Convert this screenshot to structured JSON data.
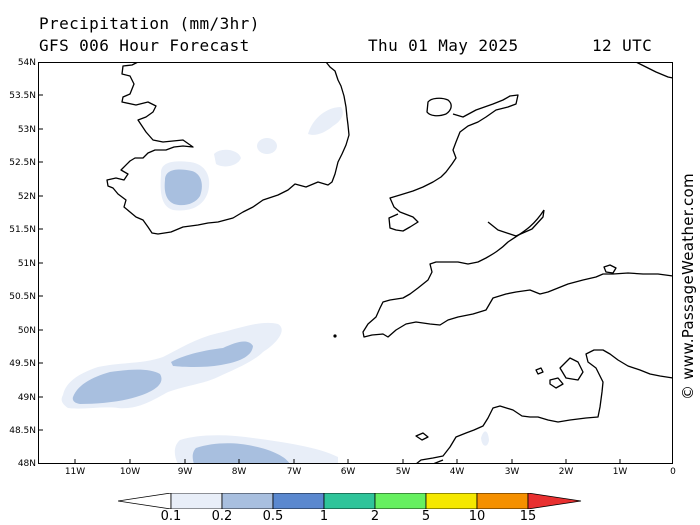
{
  "header": {
    "title": "Precipitation (mm/3hr)",
    "subtitle": "GFS 006 Hour Forecast",
    "date": "Thu 01 May 2025",
    "time": "12 UTC"
  },
  "map": {
    "lat_labels": [
      "54N",
      "53.5N",
      "53N",
      "52.5N",
      "52N",
      "51.5N",
      "51N",
      "50.5N",
      "50N",
      "49.5N",
      "49N",
      "48.5N",
      "48N"
    ],
    "lon_labels": [
      "11W",
      "10W",
      "9W",
      "8W",
      "7W",
      "6W",
      "5W",
      "4W",
      "3W",
      "2W",
      "1W",
      "0"
    ],
    "lat_range": [
      48,
      54
    ],
    "lon_range": [
      -12,
      0
    ],
    "precip_areas": [
      {
        "name": "irish-sea-north",
        "level": 0.1,
        "lon": -5.9,
        "lat": 53.2
      },
      {
        "name": "sw-ireland",
        "level": 0.2,
        "lon": -8.9,
        "lat": 52.1
      },
      {
        "name": "celtic-sea-band",
        "level": 0.2,
        "lon": -9.5,
        "lat": 49.3
      },
      {
        "name": "biscay-south",
        "level": 0.2,
        "lon": -8.0,
        "lat": 48.2
      },
      {
        "name": "channel-islands",
        "level": 0.1,
        "lon": -3.5,
        "lat": 48.4
      }
    ]
  },
  "legend": {
    "labels": [
      "0.1",
      "0.2",
      "0.5",
      "1",
      "2",
      "5",
      "10",
      "15"
    ],
    "colors": [
      "#ffffff",
      "#e8eef8",
      "#a8bfdf",
      "#5a88cf",
      "#2fc49a",
      "#66f060",
      "#f5e800",
      "#f59000",
      "#e83030"
    ]
  },
  "copyright": "© www.PassageWeather.com"
}
